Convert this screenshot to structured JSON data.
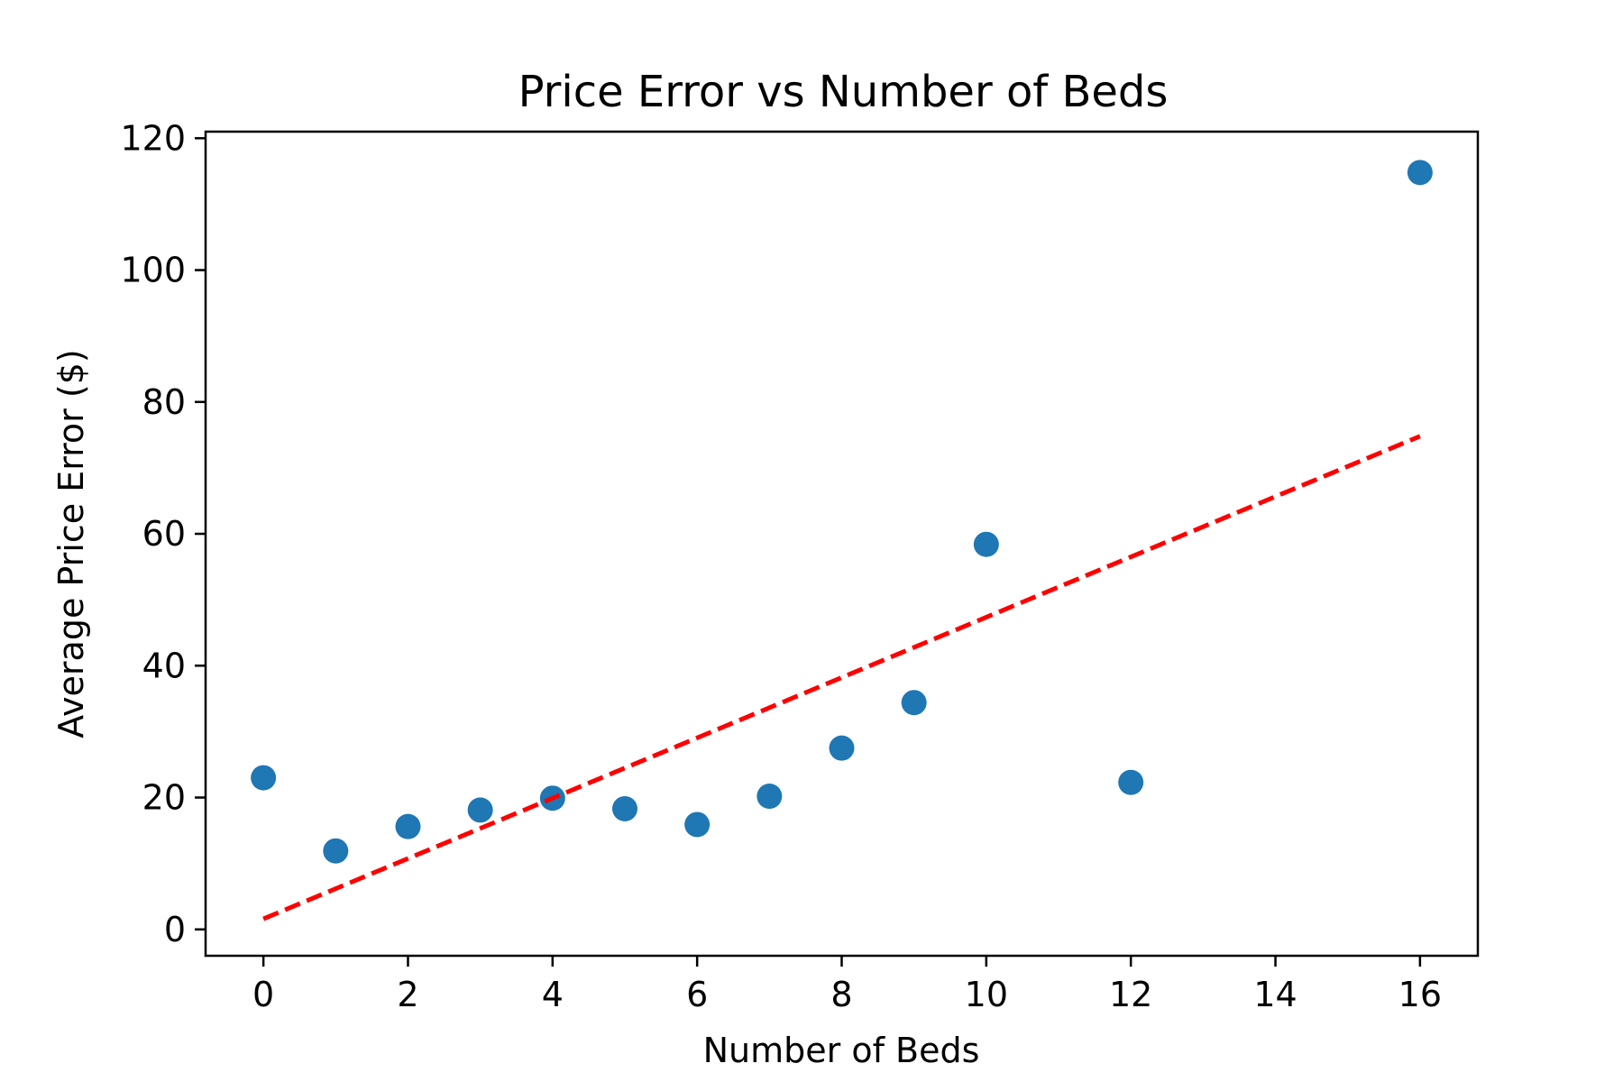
{
  "chart_data": {
    "type": "scatter",
    "title": "Price Error vs Number of Beds",
    "xlabel": "Number of Beds",
    "ylabel": "Average Price Error ($)",
    "xlim": [
      -0.8,
      16.8
    ],
    "ylim": [
      -4,
      121
    ],
    "xticks": [
      0,
      2,
      4,
      6,
      8,
      10,
      12,
      14,
      16
    ],
    "yticks": [
      0,
      20,
      40,
      60,
      80,
      100,
      120
    ],
    "grid": false,
    "series": [
      {
        "type": "scatter",
        "color": "#1f77b4",
        "points": [
          {
            "x": 0,
            "y": 23.0
          },
          {
            "x": 1,
            "y": 11.9
          },
          {
            "x": 2,
            "y": 15.6
          },
          {
            "x": 3,
            "y": 18.1
          },
          {
            "x": 4,
            "y": 19.9
          },
          {
            "x": 5,
            "y": 18.3
          },
          {
            "x": 6,
            "y": 15.9
          },
          {
            "x": 7,
            "y": 20.2
          },
          {
            "x": 8,
            "y": 27.5
          },
          {
            "x": 9,
            "y": 34.4
          },
          {
            "x": 10,
            "y": 58.4
          },
          {
            "x": 12,
            "y": 22.3
          },
          {
            "x": 16,
            "y": 114.8
          }
        ]
      },
      {
        "type": "line",
        "style": "dashed",
        "color": "#ff0000",
        "points": [
          {
            "x": 0,
            "y": 1.6
          },
          {
            "x": 16,
            "y": 74.8
          }
        ]
      }
    ]
  }
}
